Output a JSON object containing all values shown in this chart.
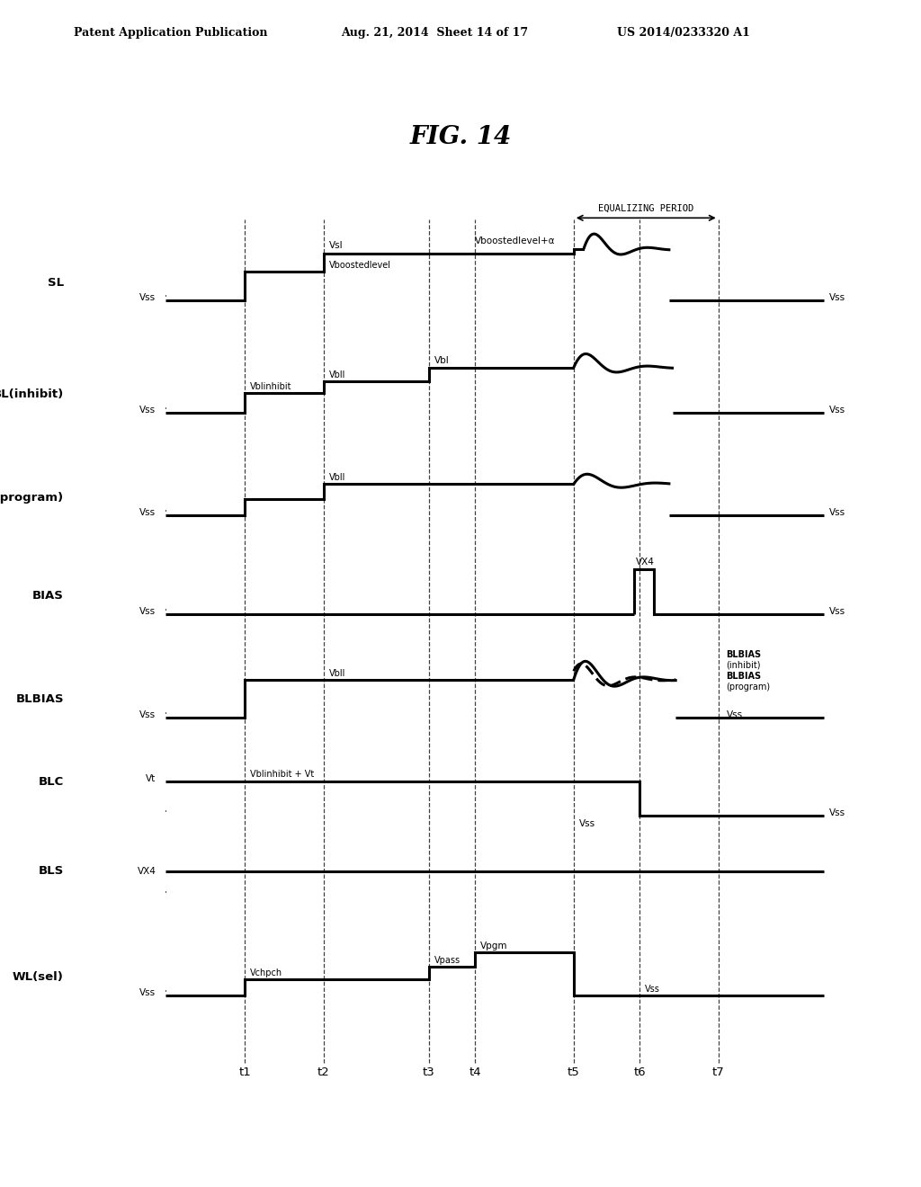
{
  "title": "FIG. 14",
  "header_left": "Patent Application Publication",
  "header_mid": "Aug. 21, 2014  Sheet 14 of 17",
  "header_right": "US 2014/0233320 A1",
  "equalizing_period_label": "EQUALIZING PERIOD",
  "signal_names": [
    "SL",
    "BL(inhibit)",
    "BL(program)",
    "BIAS",
    "BLBIAS",
    "BLC",
    "BLS",
    "WL(sel)"
  ],
  "time_labels": [
    "t1",
    "t2",
    "t3",
    "t4",
    "t5",
    "t6",
    "t7"
  ],
  "background_color": "#ffffff"
}
